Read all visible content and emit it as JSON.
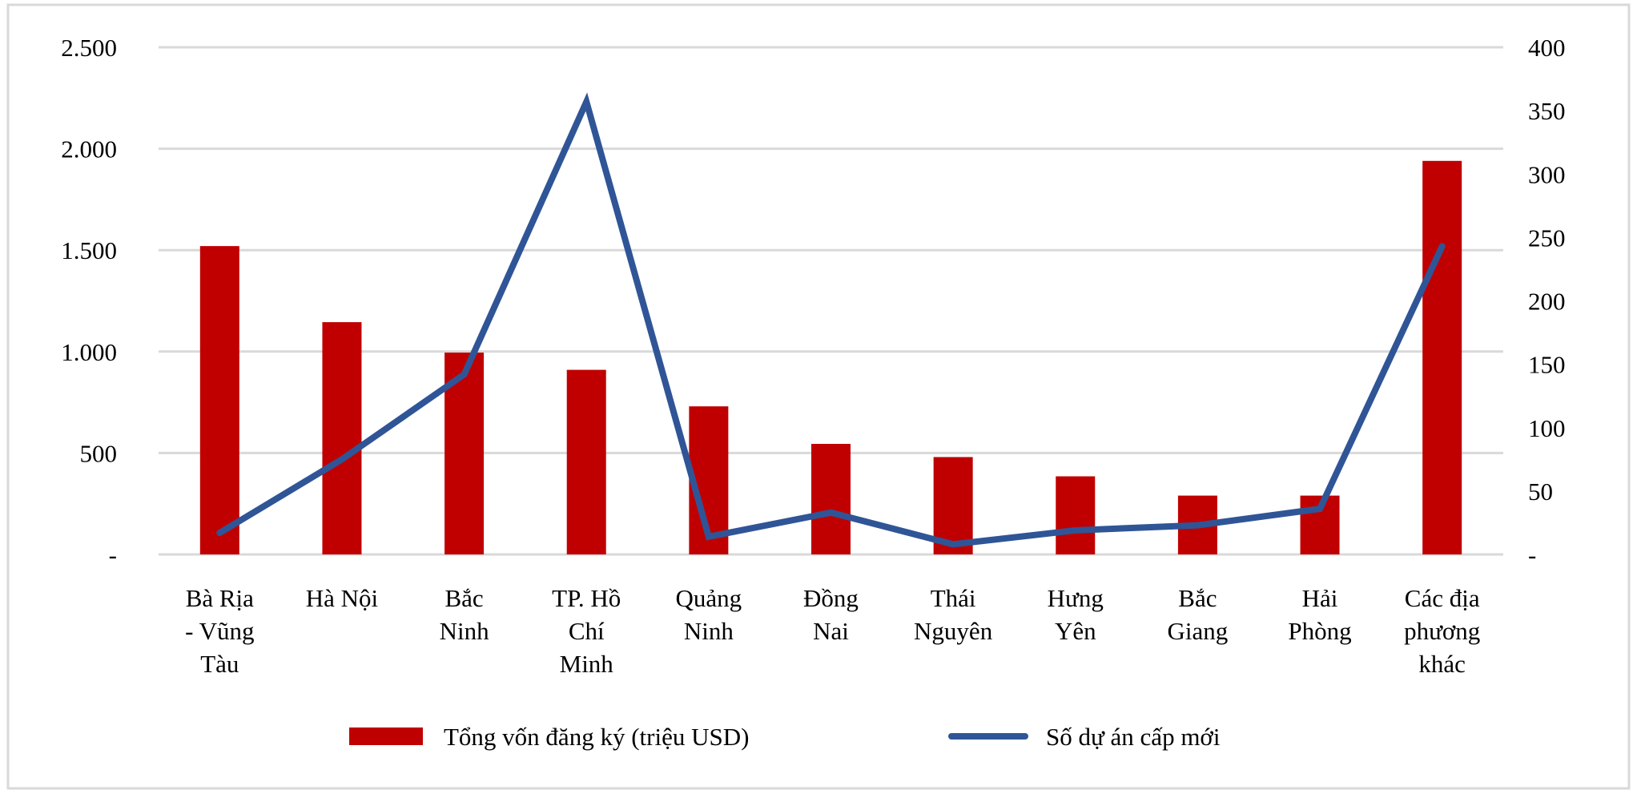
{
  "chart_data": {
    "type": "bar+line",
    "categories": [
      [
        "Bà Rịa",
        "- Vũng",
        "Tàu"
      ],
      [
        "Hà Nội"
      ],
      [
        "Bắc",
        "Ninh"
      ],
      [
        "TP. Hồ",
        "Chí",
        "Minh"
      ],
      [
        "Quảng",
        "Ninh"
      ],
      [
        "Đồng",
        "Nai"
      ],
      [
        "Thái",
        "Nguyên"
      ],
      [
        "Hưng",
        "Yên"
      ],
      [
        "Bắc",
        "Giang"
      ],
      [
        "Hải",
        "Phòng"
      ],
      [
        "Các địa",
        "phương",
        "khác"
      ]
    ],
    "series": [
      {
        "name": "Tổng vốn đăng ký (triệu  USD)",
        "type": "bar",
        "axis": "left",
        "color": "#c00000",
        "values": [
          1520,
          1145,
          995,
          910,
          730,
          545,
          480,
          385,
          290,
          290,
          1940
        ]
      },
      {
        "name": "Số dự án  cấp mới",
        "type": "line",
        "axis": "right",
        "color": "#2f5597",
        "values": [
          17,
          75,
          142,
          357,
          14,
          33,
          8,
          19,
          23,
          36,
          243
        ]
      }
    ],
    "left_axis": {
      "ylim": [
        0,
        2500
      ],
      "ticks": [
        "-",
        "500",
        "1.000",
        "1.500",
        "2.000",
        "2.500"
      ]
    },
    "right_axis": {
      "ylim": [
        0,
        400
      ],
      "ticks": [
        "-",
        "50",
        "100",
        "150",
        "200",
        "250",
        "300",
        "350",
        "400"
      ]
    },
    "grid": true,
    "legend_position": "bottom"
  }
}
